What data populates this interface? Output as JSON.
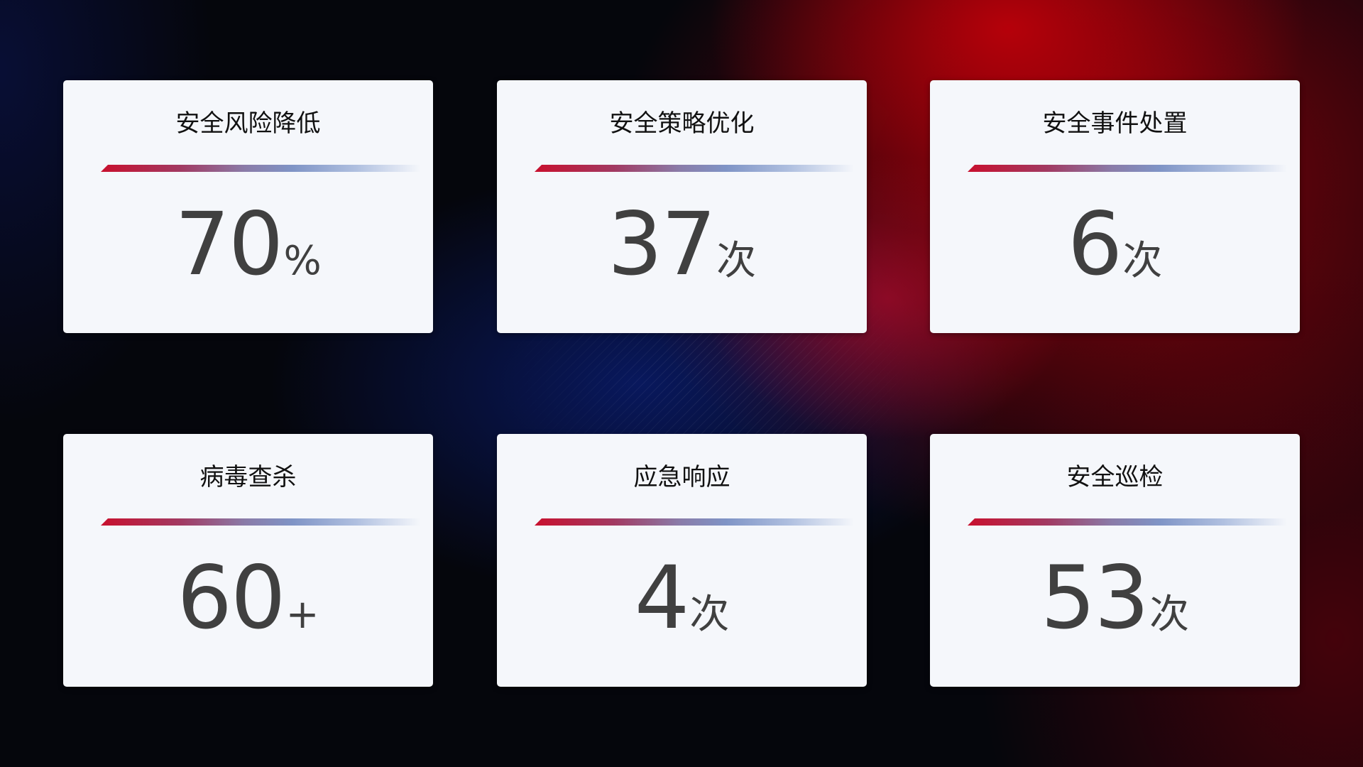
{
  "cards": [
    {
      "title": "安全风险降低",
      "value": "70",
      "unit": "%"
    },
    {
      "title": "安全策略优化",
      "value": "37",
      "unit": "次"
    },
    {
      "title": "安全事件处置",
      "value": "6",
      "unit": "次"
    },
    {
      "title": "病毒查杀",
      "value": "60",
      "unit": "+"
    },
    {
      "title": "应急响应",
      "value": "4",
      "unit": "次"
    },
    {
      "title": "安全巡检",
      "value": "53",
      "unit": "次"
    }
  ],
  "colors": {
    "accent_red": "#c8102e",
    "accent_blue": "#7f94c6",
    "card_bg": "#f5f7fb",
    "value_text": "#404040"
  }
}
